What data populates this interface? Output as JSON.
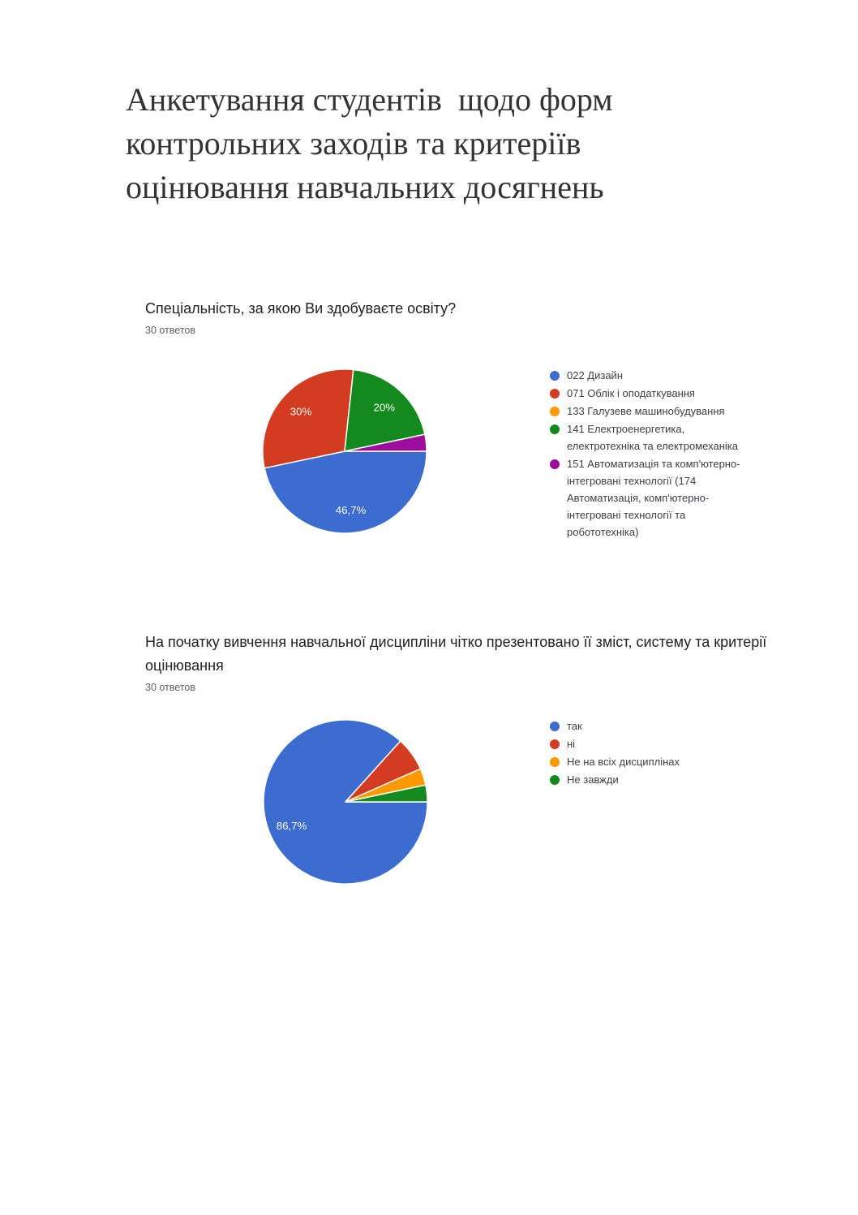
{
  "title": {
    "full": "Анкетування студентів  щодо форм контрольних заходів та критеріїв оцінювання навчальних досягнень",
    "lines": [
      "Анкетування студентів  щодо форм",
      "контрольних заходів та критеріїв",
      "оцінювання навчальних досягнень"
    ],
    "color": "#333333"
  },
  "chart_data": [
    {
      "type": "pie",
      "title": "Спеціальність, за якою Ви здобуваєте освіту?",
      "responses_label": "30 ответов",
      "legend_position": "right",
      "start_angle_deg": 90,
      "direction": "clockwise",
      "slices": [
        {
          "label": "022 Дизайн",
          "value_pct": 46.7,
          "data_label": "46,7%",
          "color": "#3D6CD0"
        },
        {
          "label": "071 Облік і оподаткування",
          "value_pct": 30,
          "data_label": "30%",
          "color": "#D43C22"
        },
        {
          "label": "133 Галузеве машинобудування",
          "value_pct": 0,
          "data_label": "",
          "color": "#FF9900"
        },
        {
          "label": "141 Електроенергетика, електротехніка та електромеханіка",
          "value_pct": 20,
          "data_label": "20%",
          "color": "#148A1E"
        },
        {
          "label": "151 Автоматизація та комп'ютерно-інтегровані технології (174 Автоматизація, комп'ютерно-інтегровані технології та робототехніка)",
          "value_pct": 3.3,
          "data_label": "",
          "color": "#9C0D9C"
        }
      ]
    },
    {
      "type": "pie",
      "title": "На початку вивчення навчальної дисципліни чітко презентовано її зміст, систему та критерії оцінювання",
      "responses_label": "30 ответов",
      "legend_position": "right",
      "start_angle_deg": 90,
      "direction": "clockwise",
      "slices": [
        {
          "label": "так",
          "value_pct": 86.7,
          "data_label": "86,7%",
          "color": "#3D6CD0"
        },
        {
          "label": "ні",
          "value_pct": 6.7,
          "data_label": "",
          "color": "#D43C22"
        },
        {
          "label": "Не на всіх дисциплінах",
          "value_pct": 3.3,
          "data_label": "",
          "color": "#FF9900"
        },
        {
          "label": "Не завжди",
          "value_pct": 3.3,
          "data_label": "",
          "color": "#148A1E"
        }
      ]
    }
  ]
}
